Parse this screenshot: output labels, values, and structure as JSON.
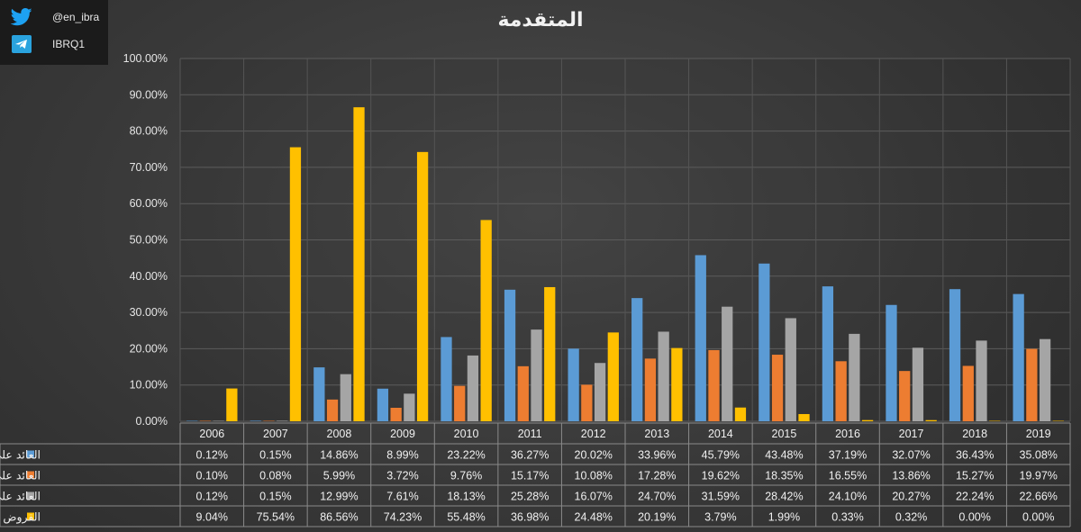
{
  "branding": {
    "twitter_handle": "@en_ibra",
    "telegram_handle": "IBRQ1",
    "twitter_icon": "twitter-bird-icon",
    "telegram_icon": "telegram-plane-icon"
  },
  "chart_data": {
    "type": "bar",
    "title": "المتقدمة",
    "categories": [
      "2006",
      "2007",
      "2008",
      "2009",
      "2010",
      "2011",
      "2012",
      "2013",
      "2014",
      "2015",
      "2016",
      "2017",
      "2018",
      "2019"
    ],
    "ylim": [
      0,
      100
    ],
    "y_ticks": [
      "0.00%",
      "10.00%",
      "20.00%",
      "30.00%",
      "40.00%",
      "50.00%",
      "60.00%",
      "70.00%",
      "80.00%",
      "90.00%",
      "100.00%"
    ],
    "grid": true,
    "legend_placement": "data-table-left",
    "series": [
      {
        "name": "العائد على رأس المال",
        "color": "#5b9bd5",
        "values": [
          0.12,
          0.15,
          14.86,
          8.99,
          23.22,
          36.27,
          20.02,
          33.96,
          45.79,
          43.48,
          37.19,
          32.07,
          36.43,
          35.08
        ],
        "labels": [
          "0.12%",
          "0.15%",
          "14.86%",
          "8.99%",
          "23.22%",
          "36.27%",
          "20.02%",
          "33.96%",
          "45.79%",
          "43.48%",
          "37.19%",
          "32.07%",
          "36.43%",
          "35.08%"
        ]
      },
      {
        "name": "العائد على الموجودات",
        "color": "#ed7d31",
        "values": [
          0.1,
          0.08,
          5.99,
          3.72,
          9.76,
          15.17,
          10.08,
          17.28,
          19.62,
          18.35,
          16.55,
          13.86,
          15.27,
          19.97
        ],
        "labels": [
          "0.10%",
          "0.08%",
          "5.99%",
          "3.72%",
          "9.76%",
          "15.17%",
          "10.08%",
          "17.28%",
          "19.62%",
          "18.35%",
          "16.55%",
          "13.86%",
          "15.27%",
          "19.97%"
        ]
      },
      {
        "name": "العائد على حقوق المساهمين",
        "color": "#a5a5a5",
        "values": [
          0.12,
          0.15,
          12.99,
          7.61,
          18.13,
          25.28,
          16.07,
          24.7,
          31.59,
          28.42,
          24.1,
          20.27,
          22.24,
          22.66
        ],
        "labels": [
          "0.12%",
          "0.15%",
          "12.99%",
          "7.61%",
          "18.13%",
          "25.28%",
          "16.07%",
          "24.70%",
          "31.59%",
          "28.42%",
          "24.10%",
          "20.27%",
          "22.24%",
          "22.66%"
        ]
      },
      {
        "name": "القروض على حقوق المساهمين",
        "color": "#ffc000",
        "values": [
          9.04,
          75.54,
          86.56,
          74.23,
          55.48,
          36.98,
          24.48,
          20.19,
          3.79,
          1.99,
          0.33,
          0.32,
          0.0,
          0.0
        ],
        "labels": [
          "9.04%",
          "75.54%",
          "86.56%",
          "74.23%",
          "55.48%",
          "36.98%",
          "24.48%",
          "20.19%",
          "3.79%",
          "1.99%",
          "0.33%",
          "0.32%",
          "0.00%",
          "0.00%"
        ]
      }
    ]
  }
}
